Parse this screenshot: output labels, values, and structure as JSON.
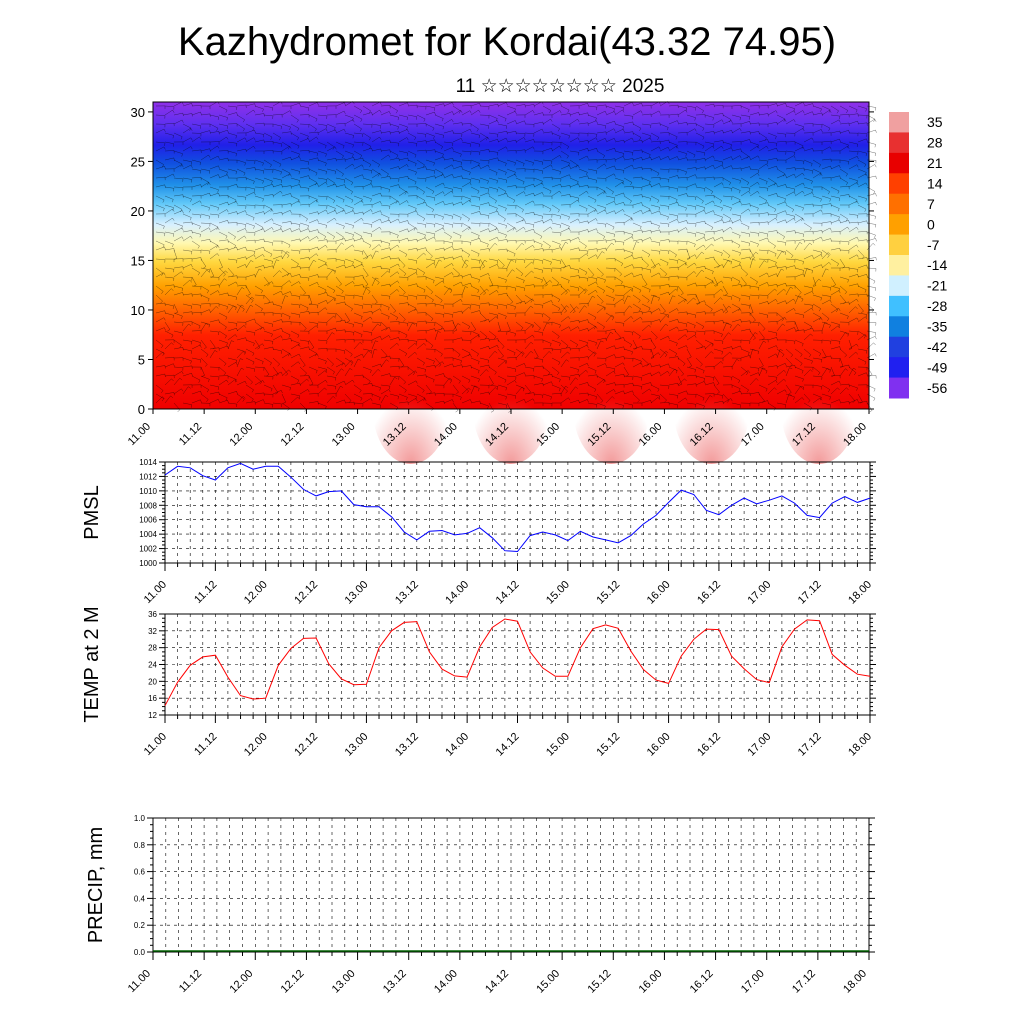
{
  "title": "Kazhydromet for Kordai(43.32 74.95)",
  "subtitle": "11 ☆☆☆☆☆☆☆☆ 2025",
  "time_labels": [
    "11.00",
    "11.12",
    "12.00",
    "12.12",
    "13.00",
    "13.12",
    "14.00",
    "14.12",
    "15.00",
    "15.12",
    "16.00",
    "16.12",
    "17.00",
    "17.12",
    "18.00"
  ],
  "chart_data": [
    {
      "type": "heatmap",
      "name": "cross-section",
      "ylim": [
        0,
        31
      ],
      "y_ticks": [
        "0",
        "5",
        "10",
        "15",
        "20",
        "25",
        "30"
      ],
      "colorbar_labels": [
        "35",
        "28",
        "21",
        "14",
        "7",
        "0",
        "-7",
        "-14",
        "-21",
        "-28",
        "-35",
        "-42",
        "-49",
        "-56"
      ],
      "colorbar_colors": [
        "#f0a0a0",
        "#e83030",
        "#e80000",
        "#ff4000",
        "#ff7000",
        "#ffa000",
        "#ffd040",
        "#fff0a0",
        "#d0f0ff",
        "#40c0ff",
        "#1080e0",
        "#2040e0",
        "#2020f0",
        "#8030f0"
      ]
    },
    {
      "type": "line",
      "ylabel": "PMSL",
      "ylim": [
        1000,
        1014
      ],
      "y_ticks": [
        "1000",
        "1002",
        "1004",
        "1006",
        "1008",
        "1010",
        "1012",
        "1014"
      ],
      "color": "#0000ff",
      "x": [
        0,
        3,
        6,
        9,
        12,
        15,
        18,
        21,
        24,
        27,
        30,
        33,
        36,
        39,
        42,
        45,
        48,
        51,
        54,
        57,
        60,
        63,
        66,
        69,
        72,
        75,
        78,
        81,
        84,
        87,
        90,
        93,
        96,
        99,
        102,
        105,
        108,
        111,
        114,
        117,
        120,
        123,
        126,
        129,
        132,
        135,
        138,
        141,
        144,
        147,
        150,
        153,
        156,
        159,
        162,
        165,
        168
      ],
      "values": [
        1012.2,
        1013.4,
        1013.2,
        1012.1,
        1011.5,
        1013.2,
        1013.8,
        1013.0,
        1013.4,
        1013.4,
        1011.9,
        1010.2,
        1009.3,
        1009.9,
        1010.0,
        1008.1,
        1007.8,
        1007.8,
        1006.4,
        1004.3,
        1003.2,
        1004.4,
        1004.5,
        1003.9,
        1004.1,
        1004.9,
        1003.5,
        1001.7,
        1001.6,
        1003.8,
        1004.3,
        1003.9,
        1003.1,
        1004.4,
        1003.6,
        1003.2,
        1002.8,
        1003.8,
        1005.4,
        1006.6,
        1008.4,
        1010.1,
        1009.5,
        1007.3,
        1006.7,
        1008.0,
        1009.0,
        1008.2,
        1008.7,
        1009.3,
        1008.3,
        1006.6,
        1006.3,
        1008.3,
        1009.2,
        1008.4,
        1009.0
      ]
    },
    {
      "type": "line",
      "ylabel": "TEMP at 2 M",
      "ylim": [
        12,
        36
      ],
      "y_ticks": [
        "12",
        "16",
        "20",
        "24",
        "28",
        "32",
        "36"
      ],
      "color": "#ff0000",
      "x": [
        0,
        3,
        6,
        9,
        12,
        15,
        18,
        21,
        24,
        27,
        30,
        33,
        36,
        39,
        42,
        45,
        48,
        51,
        54,
        57,
        60,
        63,
        66,
        69,
        72,
        75,
        78,
        81,
        84,
        87,
        90,
        93,
        96,
        99,
        102,
        105,
        108,
        111,
        114,
        117,
        120,
        123,
        126,
        129,
        132,
        135,
        138,
        141,
        144,
        147,
        150,
        153,
        156,
        159,
        162,
        165,
        168
      ],
      "values": [
        14.2,
        19.8,
        23.8,
        25.8,
        26.2,
        21.0,
        16.6,
        15.8,
        16.0,
        23.8,
        27.8,
        30.2,
        30.3,
        24.2,
        20.6,
        19.2,
        19.3,
        28.0,
        32.0,
        34.0,
        34.2,
        27.0,
        22.9,
        21.3,
        21.0,
        28.2,
        32.8,
        34.8,
        34.3,
        27.0,
        23.2,
        21.2,
        21.2,
        28.0,
        32.5,
        33.4,
        32.6,
        27.2,
        22.8,
        20.3,
        19.5,
        26.0,
        30.0,
        32.4,
        32.3,
        26.0,
        23.0,
        20.4,
        19.7,
        28.2,
        32.4,
        34.6,
        34.4,
        26.4,
        23.8,
        21.7,
        21.2
      ]
    },
    {
      "type": "bar",
      "ylabel": "PRECIP, mm",
      "ylim": [
        0,
        1
      ],
      "y_ticks": [
        "0.0",
        "0.2",
        "0.4",
        "0.6",
        "0.8",
        "1.0"
      ],
      "values": []
    }
  ]
}
